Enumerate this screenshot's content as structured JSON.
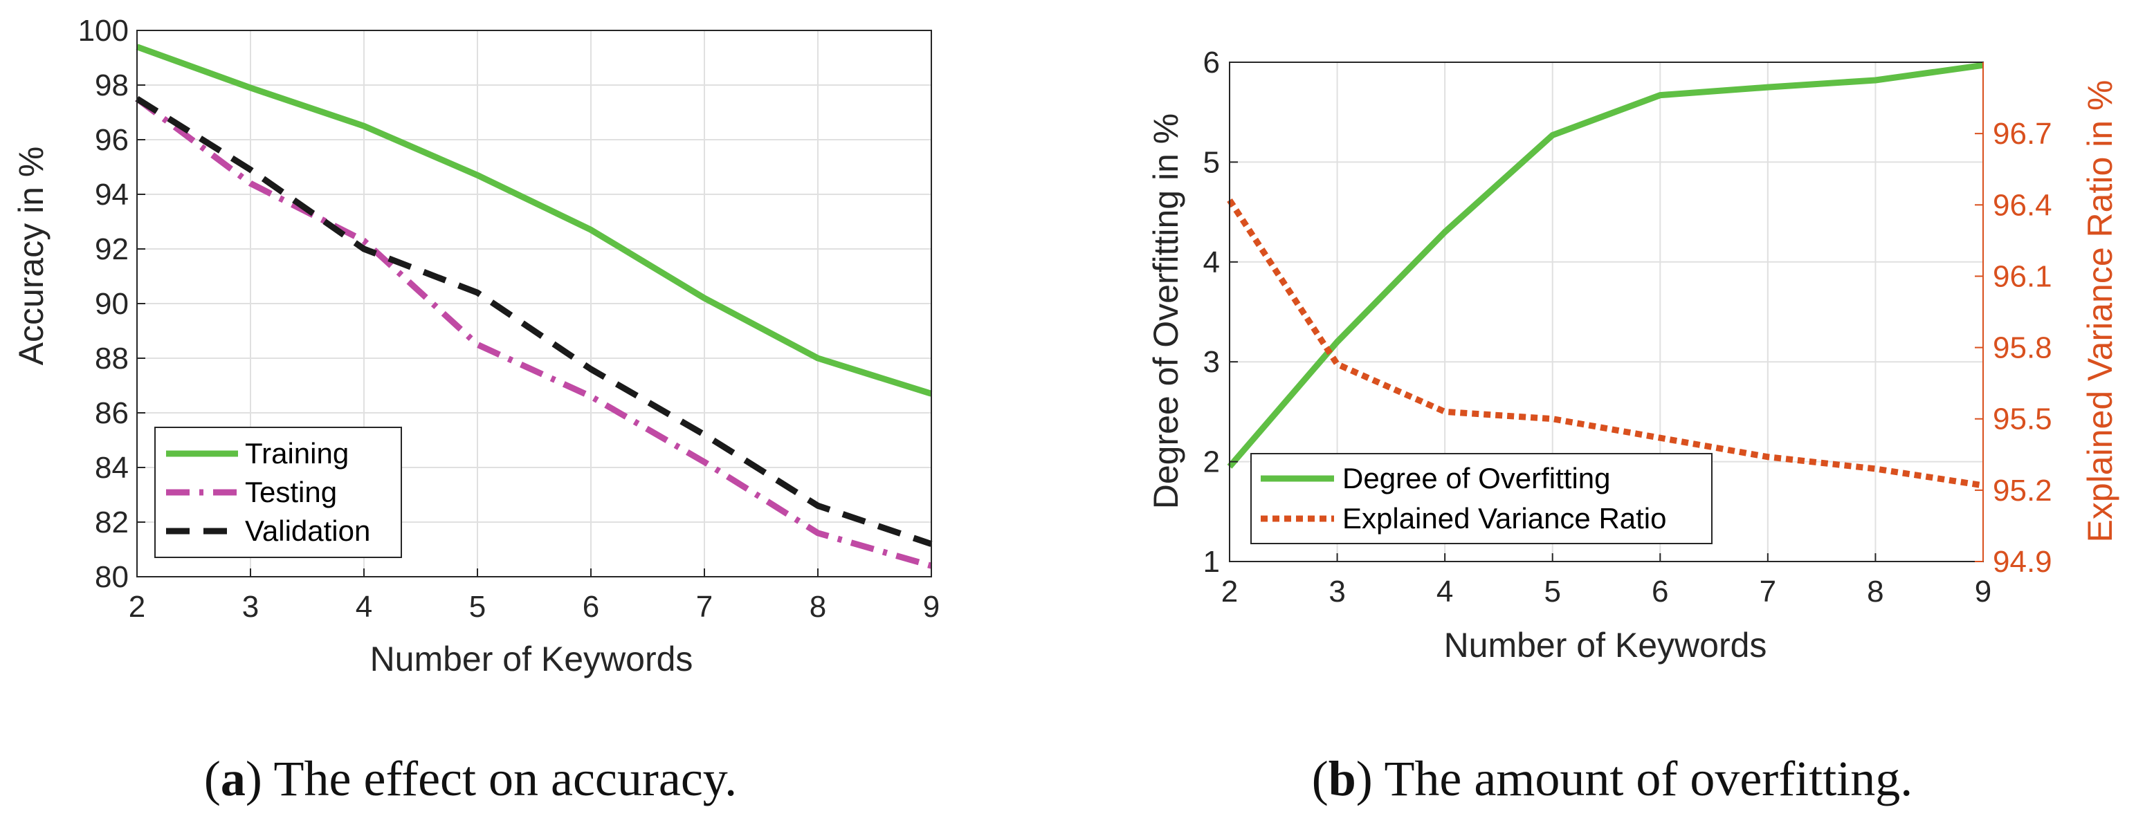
{
  "colors": {
    "training": "#5fbf44",
    "testing": "#c04aa4",
    "validation": "#1a1a1a",
    "overfitting": "#5fbf44",
    "variance": "#d9501e",
    "grid": "#e0e0e0",
    "axis": "#262626"
  },
  "chart_data": [
    {
      "type": "line",
      "xlabel": "Number of Keywords",
      "ylabel": "Accuracy in %",
      "xlim": [
        2,
        9
      ],
      "ylim": [
        80,
        100
      ],
      "x": [
        2,
        3,
        4,
        5,
        6,
        7,
        8,
        9
      ],
      "xticks": [
        "2",
        "3",
        "4",
        "5",
        "6",
        "7",
        "8",
        "9"
      ],
      "yticks": [
        "80",
        "82",
        "84",
        "86",
        "88",
        "90",
        "92",
        "94",
        "96",
        "98",
        "100"
      ],
      "grid": true,
      "legend_position": "bottom-left",
      "series": [
        {
          "name": "Training",
          "values": [
            99.4,
            97.9,
            96.5,
            94.7,
            92.7,
            90.2,
            88.0,
            86.7
          ],
          "style": "solid"
        },
        {
          "name": "Testing",
          "values": [
            97.5,
            94.4,
            92.3,
            88.5,
            86.6,
            84.2,
            81.6,
            80.4
          ],
          "style": "dashdot"
        },
        {
          "name": "Validation",
          "values": [
            97.5,
            94.9,
            92.0,
            90.4,
            87.6,
            85.2,
            82.6,
            81.2
          ],
          "style": "dashed"
        }
      ],
      "caption_label": "a",
      "caption_text": "The effect on accuracy."
    },
    {
      "type": "line",
      "xlabel": "Number of Keywords",
      "ylabel": "Degree of Overfitting in %",
      "ylabel_right": "Explained Variance Ratio in %",
      "xlim": [
        2,
        9
      ],
      "ylim": [
        1,
        6
      ],
      "ylim_right": [
        94.9,
        97.0
      ],
      "x": [
        2,
        3,
        4,
        5,
        6,
        7,
        8,
        9
      ],
      "xticks": [
        "2",
        "3",
        "4",
        "5",
        "6",
        "7",
        "8",
        "9"
      ],
      "yticks": [
        "1",
        "2",
        "3",
        "4",
        "5",
        "6"
      ],
      "yticks_right": [
        "94.9",
        "95.2",
        "95.5",
        "95.8",
        "96.1",
        "96.4",
        "96.7"
      ],
      "grid": true,
      "legend_position": "bottom-left",
      "series": [
        {
          "name": "Degree of Overfitting",
          "axis": "left",
          "values": [
            1.95,
            3.2,
            4.3,
            5.27,
            5.67,
            5.75,
            5.82,
            5.97
          ],
          "style": "solid"
        },
        {
          "name": "Explained Variance Ratio",
          "axis": "right",
          "values": [
            96.42,
            95.73,
            95.53,
            95.5,
            95.42,
            95.34,
            95.29,
            95.22
          ],
          "style": "dotted"
        }
      ],
      "caption_label": "b",
      "caption_text": "The amount of overfitting."
    }
  ]
}
